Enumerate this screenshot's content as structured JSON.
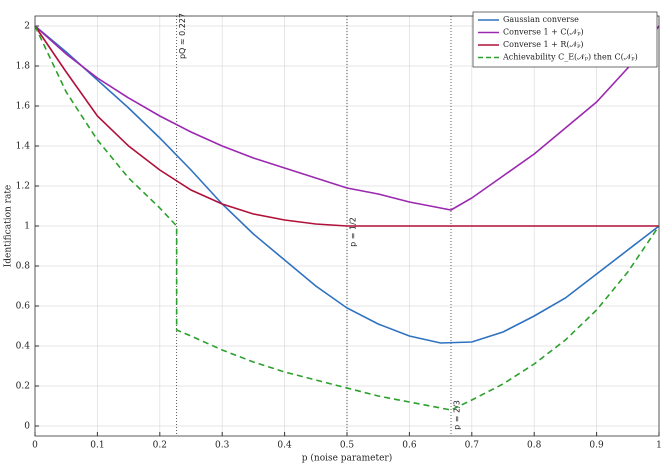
{
  "chart_data": {
    "type": "line",
    "xlabel": "p (noise parameter)",
    "ylabel": "Identification rate",
    "xlim": [
      0,
      1
    ],
    "ylim": [
      -0.05,
      2.05
    ],
    "xticks": [
      0,
      0.1,
      0.2,
      0.3,
      0.4,
      0.5,
      0.6,
      0.7,
      0.8,
      0.9,
      1
    ],
    "yticks": [
      0,
      0.2,
      0.4,
      0.6,
      0.8,
      1,
      1.2,
      1.4,
      1.6,
      1.8,
      2
    ],
    "grid": true,
    "legend": "upper right",
    "series": [
      {
        "name": "Gaussian converse",
        "color": "#2f72c0",
        "dash": "solid",
        "x": [
          0,
          0.05,
          0.1,
          0.15,
          0.2,
          0.25,
          0.3,
          0.35,
          0.4,
          0.45,
          0.5,
          0.55,
          0.6,
          0.65,
          0.7,
          0.75,
          0.8,
          0.85,
          0.9,
          0.95,
          1
        ],
        "values": [
          2,
          1.87,
          1.73,
          1.59,
          1.44,
          1.28,
          1.11,
          0.96,
          0.83,
          0.7,
          0.59,
          0.51,
          0.45,
          0.415,
          0.42,
          0.47,
          0.55,
          0.64,
          0.76,
          0.88,
          1
        ]
      },
      {
        "name": "Converse 1 + C(𝒩ₚ)",
        "color": "#9b28b0",
        "dash": "solid",
        "x": [
          0,
          0.05,
          0.1,
          0.15,
          0.2,
          0.25,
          0.3,
          0.35,
          0.4,
          0.45,
          0.5,
          0.55,
          0.6,
          0.65,
          0.6667,
          0.7,
          0.75,
          0.8,
          0.85,
          0.9,
          0.95,
          1
        ],
        "values": [
          2,
          1.86,
          1.74,
          1.64,
          1.55,
          1.47,
          1.4,
          1.34,
          1.29,
          1.24,
          1.19,
          1.16,
          1.12,
          1.09,
          1.08,
          1.14,
          1.25,
          1.36,
          1.49,
          1.62,
          1.79,
          2
        ]
      },
      {
        "name": "Converse 1 + R(𝒩ₚ)",
        "color": "#b0103a",
        "dash": "solid",
        "x": [
          0,
          0.05,
          0.1,
          0.15,
          0.2,
          0.25,
          0.3,
          0.35,
          0.4,
          0.45,
          0.5,
          1
        ],
        "values": [
          2,
          1.77,
          1.55,
          1.4,
          1.28,
          1.18,
          1.11,
          1.06,
          1.03,
          1.01,
          1,
          1
        ]
      },
      {
        "name": "Achievability C_E(𝒩ₚ) then C(𝒩ₚ)",
        "color": "#2ca02c",
        "dash": "dashed",
        "x": [
          0,
          0.05,
          0.1,
          0.15,
          0.2,
          0.227,
          0.227,
          0.25,
          0.3,
          0.35,
          0.4,
          0.45,
          0.5,
          0.55,
          0.6,
          0.65,
          0.6667,
          0.7,
          0.75,
          0.8,
          0.85,
          0.9,
          0.95,
          1
        ],
        "values": [
          2,
          1.67,
          1.43,
          1.24,
          1.09,
          1,
          0.48,
          0.45,
          0.38,
          0.32,
          0.27,
          0.23,
          0.19,
          0.15,
          0.12,
          0.09,
          0.08,
          0.13,
          0.21,
          0.31,
          0.43,
          0.58,
          0.77,
          1
        ]
      }
    ],
    "vlines": [
      {
        "x": 0.227,
        "label": "pQ ≈ 0.227"
      },
      {
        "x": 0.5,
        "label": "p = 1/2"
      },
      {
        "x": 0.6667,
        "label": "p = 2/3"
      }
    ]
  }
}
